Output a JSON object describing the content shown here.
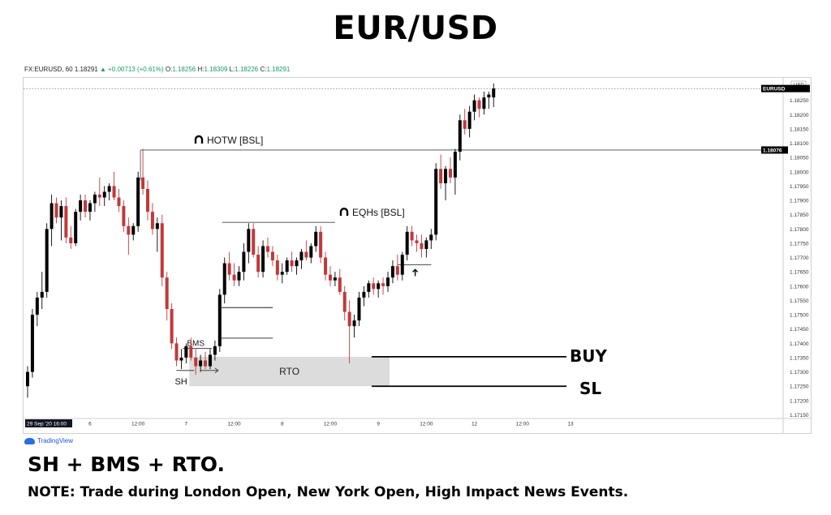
{
  "title": "EUR/USD",
  "ohlc": {
    "symbol": "FX:EURUSD, 60",
    "last": "1.18291",
    "change": "+0.00713 (+0.61%)",
    "o_label": "O:",
    "o": "1.18256",
    "h_label": "H:",
    "h": "1.18309",
    "l_label": "L:",
    "l": "1.18226",
    "c_label": "C:",
    "c": "1.18291"
  },
  "brand": "TradingView",
  "footer": {
    "headline": "SH + BMS + RTO.",
    "note": "NOTE: Trade during London Open, New York Open, High Impact News Events."
  },
  "chart_data": {
    "type": "candlestick",
    "symbol": "EURUSD",
    "timeframe": "60",
    "ylim": [
      1.1714,
      1.183
    ],
    "y_ticks": [
      1.1825,
      1.182,
      1.1815,
      1.181,
      1.1805,
      1.18,
      1.1795,
      1.179,
      1.1785,
      1.178,
      1.1775,
      1.177,
      1.1765,
      1.176,
      1.1755,
      1.175,
      1.1745,
      1.174,
      1.1735,
      1.173,
      1.1725,
      1.172,
      1.1715
    ],
    "x_ticks": [
      {
        "i": 0,
        "label": "29 Sep '20  16:00",
        "highlight": true
      },
      {
        "i": 13,
        "label": "6"
      },
      {
        "i": 23,
        "label": "12:00"
      },
      {
        "i": 33,
        "label": "7"
      },
      {
        "i": 43,
        "label": "12:00"
      },
      {
        "i": 53,
        "label": "8"
      },
      {
        "i": 63,
        "label": "12:00"
      },
      {
        "i": 73,
        "label": "9"
      },
      {
        "i": 83,
        "label": "12:00"
      },
      {
        "i": 93,
        "label": "12"
      },
      {
        "i": 103,
        "label": "12:00"
      },
      {
        "i": 113,
        "label": "13"
      }
    ],
    "price_labels": [
      {
        "price": 1.18291,
        "label": "EURUSD",
        "color": "#000000"
      },
      {
        "price": 1.18076,
        "label": "1.18076",
        "color": "#000000"
      }
    ],
    "currency": "USD",
    "candles": [
      [
        1.1725,
        1.1732,
        1.1721,
        1.173
      ],
      [
        1.173,
        1.1752,
        1.1728,
        1.175
      ],
      [
        1.175,
        1.1758,
        1.1746,
        1.1756
      ],
      [
        1.1756,
        1.1765,
        1.1752,
        1.1758
      ],
      [
        1.1758,
        1.1782,
        1.1756,
        1.178
      ],
      [
        1.178,
        1.1792,
        1.1774,
        1.1789
      ],
      [
        1.1789,
        1.1791,
        1.1782,
        1.1784
      ],
      [
        1.1784,
        1.179,
        1.1776,
        1.1788
      ],
      [
        1.1788,
        1.1791,
        1.1775,
        1.1777
      ],
      [
        1.1777,
        1.1781,
        1.1773,
        1.1775
      ],
      [
        1.1775,
        1.1787,
        1.1774,
        1.1786
      ],
      [
        1.1786,
        1.1792,
        1.1783,
        1.179
      ],
      [
        1.179,
        1.1792,
        1.1784,
        1.1786
      ],
      [
        1.1786,
        1.179,
        1.1783,
        1.1789
      ],
      [
        1.1789,
        1.1793,
        1.1786,
        1.1792
      ],
      [
        1.1792,
        1.1798,
        1.1788,
        1.1791
      ],
      [
        1.1791,
        1.1795,
        1.1788,
        1.1793
      ],
      [
        1.1793,
        1.1796,
        1.179,
        1.1795
      ],
      [
        1.1795,
        1.18,
        1.179,
        1.1791
      ],
      [
        1.1791,
        1.1794,
        1.1786,
        1.1788
      ],
      [
        1.1788,
        1.179,
        1.1779,
        1.1781
      ],
      [
        1.1781,
        1.1784,
        1.1771,
        1.1778
      ],
      [
        1.1778,
        1.1782,
        1.1776,
        1.1781
      ],
      [
        1.1781,
        1.18,
        1.1779,
        1.1798
      ],
      [
        1.1798,
        1.1808,
        1.1792,
        1.1794
      ],
      [
        1.1794,
        1.1797,
        1.1783,
        1.1786
      ],
      [
        1.1786,
        1.1789,
        1.1778,
        1.178
      ],
      [
        1.178,
        1.1784,
        1.1772,
        1.1782
      ],
      [
        1.1782,
        1.1785,
        1.176,
        1.1763
      ],
      [
        1.1763,
        1.1765,
        1.1748,
        1.1752
      ],
      [
        1.1752,
        1.1754,
        1.1738,
        1.174
      ],
      [
        1.174,
        1.1742,
        1.1732,
        1.1734
      ],
      [
        1.1734,
        1.1738,
        1.1731,
        1.1735
      ],
      [
        1.1735,
        1.174,
        1.1733,
        1.1739
      ],
      [
        1.1739,
        1.1742,
        1.1734,
        1.1735
      ],
      [
        1.1735,
        1.1738,
        1.1729,
        1.1732
      ],
      [
        1.1732,
        1.1736,
        1.173,
        1.1734
      ],
      [
        1.1734,
        1.1737,
        1.1731,
        1.1732
      ],
      [
        1.1732,
        1.1738,
        1.1731,
        1.1736
      ],
      [
        1.1736,
        1.1741,
        1.1734,
        1.1739
      ],
      [
        1.1739,
        1.1759,
        1.1737,
        1.1757
      ],
      [
        1.1757,
        1.177,
        1.1754,
        1.1768
      ],
      [
        1.1768,
        1.1772,
        1.1762,
        1.1764
      ],
      [
        1.1764,
        1.1768,
        1.176,
        1.1762
      ],
      [
        1.1762,
        1.1767,
        1.176,
        1.1765
      ],
      [
        1.1765,
        1.1775,
        1.1762,
        1.1772
      ],
      [
        1.1772,
        1.1782,
        1.1768,
        1.178
      ],
      [
        1.178,
        1.1782,
        1.177,
        1.1771
      ],
      [
        1.1771,
        1.1774,
        1.1763,
        1.1765
      ],
      [
        1.1765,
        1.1776,
        1.1763,
        1.1774
      ],
      [
        1.1774,
        1.1777,
        1.177,
        1.1772
      ],
      [
        1.1772,
        1.1774,
        1.1767,
        1.1769
      ],
      [
        1.1769,
        1.1771,
        1.1762,
        1.1764
      ],
      [
        1.1764,
        1.1768,
        1.1761,
        1.1765
      ],
      [
        1.1765,
        1.177,
        1.1764,
        1.1769
      ],
      [
        1.1769,
        1.1772,
        1.1765,
        1.1767
      ],
      [
        1.1767,
        1.177,
        1.1764,
        1.1769
      ],
      [
        1.1769,
        1.1773,
        1.1766,
        1.1772
      ],
      [
        1.1772,
        1.1776,
        1.1769,
        1.177
      ],
      [
        1.177,
        1.1775,
        1.1768,
        1.1774
      ],
      [
        1.1774,
        1.1781,
        1.1772,
        1.1779
      ],
      [
        1.1779,
        1.1781,
        1.1768,
        1.177
      ],
      [
        1.177,
        1.1772,
        1.1762,
        1.1764
      ],
      [
        1.1764,
        1.1767,
        1.176,
        1.1762
      ],
      [
        1.1762,
        1.1765,
        1.176,
        1.1763
      ],
      [
        1.1763,
        1.1766,
        1.1757,
        1.1758
      ],
      [
        1.1758,
        1.176,
        1.1748,
        1.1751
      ],
      [
        1.1751,
        1.1755,
        1.1733,
        1.1746
      ],
      [
        1.1746,
        1.175,
        1.1742,
        1.1748
      ],
      [
        1.1748,
        1.1758,
        1.1746,
        1.1756
      ],
      [
        1.1756,
        1.176,
        1.1753,
        1.1758
      ],
      [
        1.1758,
        1.1762,
        1.1756,
        1.1761
      ],
      [
        1.1761,
        1.1763,
        1.1757,
        1.1759
      ],
      [
        1.1759,
        1.1762,
        1.1756,
        1.1761
      ],
      [
        1.1761,
        1.1763,
        1.1757,
        1.176
      ],
      [
        1.176,
        1.1765,
        1.1758,
        1.1763
      ],
      [
        1.1763,
        1.1769,
        1.1761,
        1.1767
      ],
      [
        1.1767,
        1.1771,
        1.1762,
        1.1764
      ],
      [
        1.1764,
        1.1772,
        1.1762,
        1.1771
      ],
      [
        1.1771,
        1.1781,
        1.1769,
        1.1779
      ],
      [
        1.1779,
        1.1781,
        1.1774,
        1.1776
      ],
      [
        1.1776,
        1.1778,
        1.1772,
        1.1775
      ],
      [
        1.1775,
        1.1778,
        1.177,
        1.1773
      ],
      [
        1.1773,
        1.1777,
        1.177,
        1.1776
      ],
      [
        1.1776,
        1.178,
        1.1773,
        1.1778
      ],
      [
        1.1778,
        1.1803,
        1.1776,
        1.1801
      ],
      [
        1.1801,
        1.1806,
        1.1794,
        1.1796
      ],
      [
        1.1796,
        1.1802,
        1.179,
        1.1801
      ],
      [
        1.1801,
        1.1805,
        1.1796,
        1.1798
      ],
      [
        1.1798,
        1.1808,
        1.1792,
        1.1807
      ],
      [
        1.1807,
        1.182,
        1.1804,
        1.1818
      ],
      [
        1.1818,
        1.1822,
        1.1813,
        1.1815
      ],
      [
        1.1815,
        1.1823,
        1.1812,
        1.1821
      ],
      [
        1.1821,
        1.1827,
        1.1818,
        1.1825
      ],
      [
        1.1825,
        1.1826,
        1.1819,
        1.1822
      ],
      [
        1.1822,
        1.1828,
        1.182,
        1.1826
      ],
      [
        1.1826,
        1.1828,
        1.1822,
        1.1827
      ],
      [
        1.1826,
        1.18309,
        1.18226,
        1.18291
      ]
    ],
    "levels": [
      {
        "name": "HOTW [BSL]",
        "price": 1.18076,
        "start": 24,
        "end": 112,
        "style": "solid"
      },
      {
        "name": "EQHs [BSL]",
        "price": 1.17823,
        "start": 41,
        "end": 64,
        "style": "solid"
      }
    ],
    "annotations": {
      "structure_lines": [
        {
          "price": 1.17525,
          "start": 40,
          "end": 48
        },
        {
          "price": 1.17418,
          "start": 40,
          "end": 48
        }
      ],
      "bms": {
        "label": "BMS",
        "price": 1.17382,
        "start": 33,
        "end": 37
      },
      "sh": {
        "label": "SH",
        "price": 1.17305,
        "start": 32,
        "end": 34
      },
      "arrow_price": 1.17305,
      "rto": {
        "label": "RTO",
        "top": 1.17353,
        "bottom": 1.1725,
        "start": 34,
        "end": 75
      },
      "buy": {
        "label": "BUY",
        "price": 1.17353
      },
      "sl": {
        "label": "SL",
        "price": 1.1725
      },
      "recent_level": {
        "price": 1.17675,
        "start": 77,
        "end": 82
      }
    },
    "colors": {
      "bull": "#000000",
      "bear": "#c0393b",
      "rto_fill": "#dcdcdc"
    }
  }
}
